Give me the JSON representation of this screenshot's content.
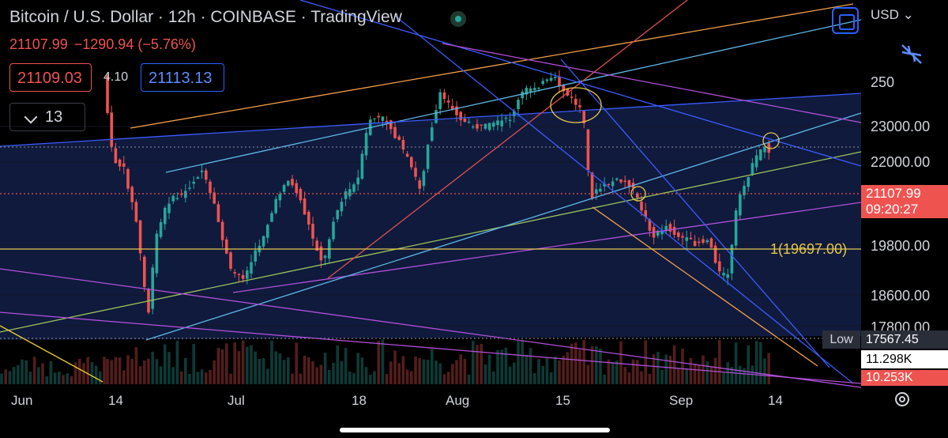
{
  "header": {
    "title": "Bitcoin / U.S. Dollar · 12h · COINBASE · TradingView",
    "last": "21107.99",
    "change": "−1290.94 (−5.76%)",
    "bid": "21109.03",
    "spread": "4.10",
    "ask": "21113.13",
    "indicator_count": "13",
    "currency": "USD"
  },
  "price_axis": {
    "labels": [
      "250",
      "23000.00",
      "22000.00",
      "19800.00",
      "18600.00",
      "17800.00"
    ],
    "current_price": "21107.99",
    "countdown": "09:20:27",
    "low_label": "Low",
    "low_value": "17567.45",
    "volume_1": "11.298K",
    "volume_2": "10.253K"
  },
  "fib_label": "1(19697.00)",
  "time_axis": [
    "Jun",
    "14",
    "Jul",
    "18",
    "Aug",
    "15",
    "Sep",
    "14"
  ],
  "colors": {
    "background": "#000000",
    "up": "#26a69a",
    "down": "#ef5350",
    "accent": "#2962ff",
    "fib": "#e6c84b"
  },
  "icons": [
    "fullscreen-icon",
    "collapse-arrows-icon",
    "chevron-down-icon",
    "settings-gear-icon",
    "live-indicator-icon"
  ]
}
